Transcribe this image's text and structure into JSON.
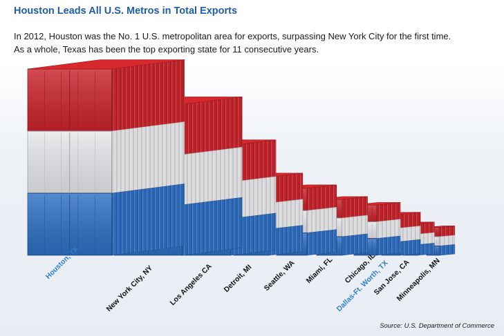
{
  "title": "Houston Leads All U.S. Metros in Total Exports",
  "subtitle_line1": "In 2012, Houston was the No. 1 U.S. metropolitan area for exports, surpassing New York City for the first time.",
  "subtitle_line2": "As a whole, Texas has been the top exporting state for 11 consecutive years.",
  "source": "Source: U.S. Department of Commerce",
  "colors": {
    "red": "#c9242b",
    "white": "#e6e7ea",
    "blue": "#2e6fc2",
    "highlight_label": "#2f7fd1",
    "label": "#111111"
  },
  "chart_data": {
    "type": "bar",
    "title": "Houston Leads All U.S. Metros in Total Exports",
    "xlabel": "",
    "ylabel": "",
    "categories": [
      "Houston, TX",
      "New York City, NY",
      "Los Angeles CA",
      "Detroit, MI",
      "Seattle, WA",
      "Miami, FL",
      "Chicago, IL",
      "Dallas-Ft. Worth, TX",
      "San Jose, CA",
      "Minneapolis, MN"
    ],
    "values": [
      100,
      81,
      59,
      42,
      36,
      30,
      27,
      22,
      17,
      15
    ],
    "highlighted": [
      "Houston, TX",
      "Dallas-Ft. Worth, TX"
    ],
    "note": "relative values estimated from container sizes; no numeric axis shown"
  }
}
